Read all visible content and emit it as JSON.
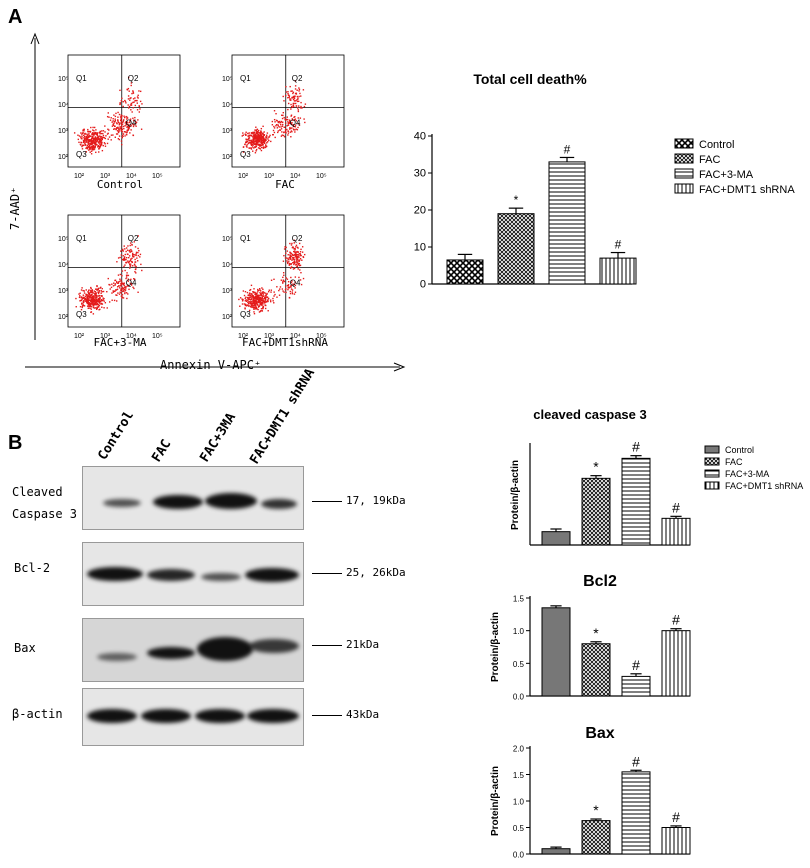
{
  "panel_a": {
    "letter": "A",
    "y_axis_label": "7-AAD⁺",
    "x_axis_label": "Annexin V-APC⁺",
    "quadrant_labels": [
      "Q1",
      "Q2",
      "Q3",
      "Q4"
    ],
    "plots": [
      {
        "caption": "Control"
      },
      {
        "caption": "FAC"
      },
      {
        "caption": "FAC+3-MA"
      },
      {
        "caption": "FAC+DMT1shRNA"
      }
    ],
    "tick_labels": [
      "10²",
      "10³",
      "10⁴",
      "10⁵"
    ]
  },
  "panel_b": {
    "letter": "B",
    "lanes": [
      "Control",
      "FAC",
      "FAC+3MA",
      "FAC+DMT1 shRNA"
    ],
    "blots": [
      {
        "label_line1": "Cleaved",
        "label_line2": "Caspase 3",
        "size": "17, 19kDa"
      },
      {
        "label_line1": "Bcl-2",
        "label_line2": "",
        "size": "25, 26kDa"
      },
      {
        "label_line1": "Bax",
        "label_line2": "",
        "size": "21kDa"
      },
      {
        "label_line1": "β-actin",
        "label_line2": "",
        "size": "43kDa"
      }
    ]
  },
  "chart_data": [
    {
      "type": "bar",
      "title": "Total cell death%",
      "categories": [
        "Control",
        "FAC",
        "FAC+3-MA",
        "FAC+DMT1 shRNA"
      ],
      "values": [
        6.5,
        19,
        33,
        7
      ],
      "errors": [
        1.5,
        1.5,
        1.2,
        1.5
      ],
      "significance": [
        "",
        "*",
        "#",
        "#"
      ],
      "ylim": [
        0,
        40
      ],
      "yticks": [
        0,
        10,
        20,
        30,
        40
      ],
      "ylabel": "",
      "legend": [
        "Control",
        "FAC",
        "FAC+3-MA",
        "FAC+DMT1 shRNA"
      ]
    },
    {
      "type": "bar",
      "title": "cleaved caspase 3",
      "categories": [
        "Control",
        "FAC",
        "FAC+3-MA",
        "FAC+DMT1 shRNA"
      ],
      "values": [
        0.2,
        1.0,
        1.3,
        0.4
      ],
      "errors": [
        0.04,
        0.04,
        0.04,
        0.03
      ],
      "significance": [
        "",
        "*",
        "#",
        "#"
      ],
      "ylim": [
        0,
        1.5
      ],
      "yticks": [],
      "ylabel": "Protein/β-actin",
      "legend": [
        "Control",
        "FAC",
        "FAC+3-MA",
        "FAC+DMT1 shRNA"
      ]
    },
    {
      "type": "bar",
      "title": "Bcl2",
      "categories": [
        "Control",
        "FAC",
        "FAC+3-MA",
        "FAC+DMT1 shRNA"
      ],
      "values": [
        1.35,
        0.8,
        0.3,
        1.0
      ],
      "errors": [
        0.03,
        0.03,
        0.04,
        0.03
      ],
      "significance": [
        "",
        "*",
        "#",
        "#"
      ],
      "ylim": [
        0,
        1.5
      ],
      "yticks": [
        0.0,
        0.5,
        1.0,
        1.5
      ],
      "ylabel": "Protein/β-actin",
      "legend": []
    },
    {
      "type": "bar",
      "title": "Bax",
      "categories": [
        "Control",
        "FAC",
        "FAC+3-MA",
        "FAC+DMT1 shRNA"
      ],
      "values": [
        0.1,
        0.63,
        1.55,
        0.5
      ],
      "errors": [
        0.03,
        0.03,
        0.03,
        0.03
      ],
      "significance": [
        "",
        "*",
        "#",
        "#"
      ],
      "ylim": [
        0,
        2.0
      ],
      "yticks": [
        0.0,
        0.5,
        1.0,
        1.5,
        2.0
      ],
      "ylabel": "Protein/β-actin",
      "legend": []
    }
  ]
}
